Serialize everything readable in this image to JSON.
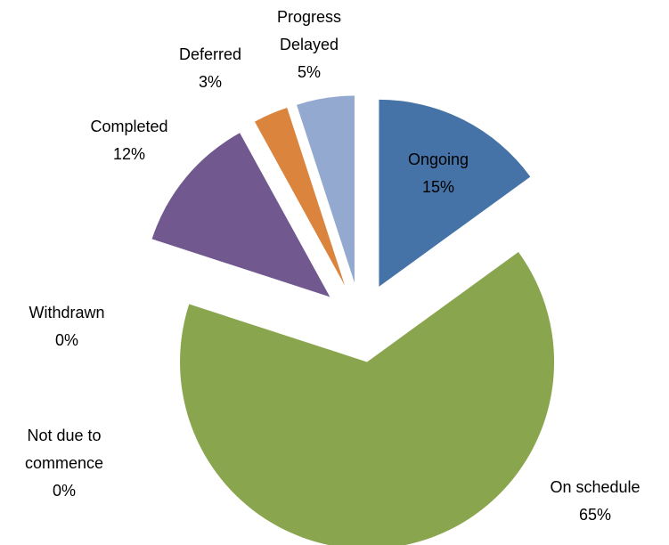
{
  "chart_data": {
    "type": "pie",
    "categories": [
      "Ongoing",
      "On schedule",
      "Not due to commence",
      "Withdrawn",
      "Completed",
      "Deferred",
      "Progress Delayed"
    ],
    "values": [
      15,
      65,
      0,
      0,
      12,
      3,
      5
    ],
    "value_labels": [
      "15%",
      "65%",
      "0%",
      "0%",
      "12%",
      "3%",
      "5%"
    ],
    "colors": [
      "#4572a7",
      "#89a54e",
      "#3d96ae",
      "#db843d",
      "#71588f",
      "#db843d",
      "#93a9cf"
    ],
    "exploded": true
  }
}
